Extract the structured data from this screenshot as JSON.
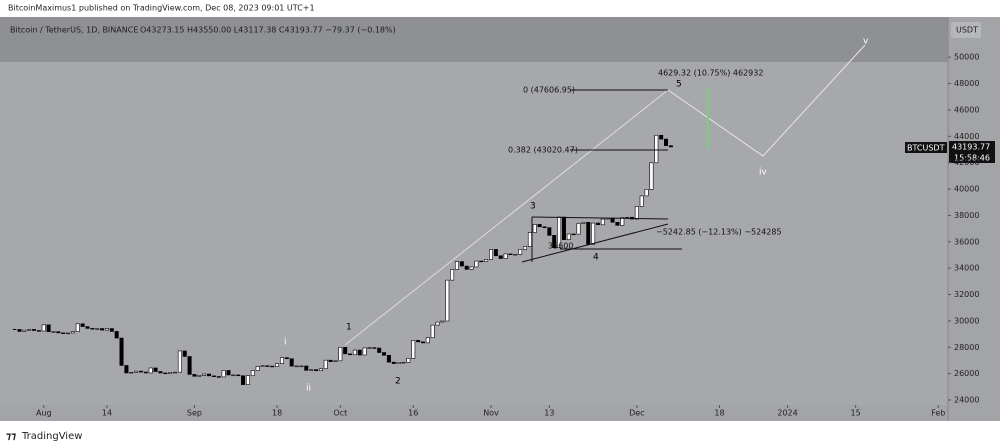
{
  "header": {
    "byline": "BitcoinMaximus1 published on TradingView.com, Dec 08, 2023 09:01 UTC+1",
    "symbol": "Bitcoin / TetherUS, 1D, BINANCE",
    "ohlc": "O43273.15 H43550.00 L43117.38 C43193.77 −79.37 (−0.18%)",
    "currency": "USDT"
  },
  "footer": {
    "brand": "TradingView"
  },
  "price_tag": {
    "symbol": "BTCUSDT",
    "price": "43193.77",
    "countdown": "15:58:46"
  },
  "annotations": {
    "wave_i": "i",
    "wave_ii": "ii",
    "wave_1": "1",
    "wave_2": "2",
    "wave_3": "3",
    "wave_4": "4",
    "wave_5": "5",
    "wave_iv": "iv",
    "wave_v": "v",
    "fib_0": "0 (47606.95)",
    "fib_0382": "0.382 (43020.47)",
    "measure_up": "4629.32 (10.75%) 462932",
    "measure_down": "−5242.85 (−12.13%) −524285",
    "measure_low": "35600"
  },
  "chart_data": {
    "type": "candlestick",
    "up_color": "#ffffff",
    "down_color": "#000000",
    "x": [
      "2023-07-26",
      "2023-07-27",
      "2023-07-28",
      "2023-07-29",
      "2023-07-30",
      "2023-07-31",
      "2023-08-01",
      "2023-08-02",
      "2023-08-03",
      "2023-08-04",
      "2023-08-05",
      "2023-08-06",
      "2023-08-07",
      "2023-08-08",
      "2023-08-09",
      "2023-08-10",
      "2023-08-11",
      "2023-08-12",
      "2023-08-13",
      "2023-08-14",
      "2023-08-15",
      "2023-08-16",
      "2023-08-17",
      "2023-08-18",
      "2023-08-19",
      "2023-08-20",
      "2023-08-21",
      "2023-08-22",
      "2023-08-23",
      "2023-08-24",
      "2023-08-25",
      "2023-08-26",
      "2023-08-27",
      "2023-08-28",
      "2023-08-29",
      "2023-08-30",
      "2023-08-31",
      "2023-09-01",
      "2023-09-02",
      "2023-09-03",
      "2023-09-04",
      "2023-09-05",
      "2023-09-06",
      "2023-09-07",
      "2023-09-08",
      "2023-09-09",
      "2023-09-10",
      "2023-09-11",
      "2023-09-12",
      "2023-09-13",
      "2023-09-14",
      "2023-09-15",
      "2023-09-16",
      "2023-09-17",
      "2023-09-18",
      "2023-09-19",
      "2023-09-20",
      "2023-09-21",
      "2023-09-22",
      "2023-09-23",
      "2023-09-24",
      "2023-09-25",
      "2023-09-26",
      "2023-09-27",
      "2023-09-28",
      "2023-09-29",
      "2023-09-30",
      "2023-10-01",
      "2023-10-02",
      "2023-10-03",
      "2023-10-04",
      "2023-10-05",
      "2023-10-06",
      "2023-10-07",
      "2023-10-08",
      "2023-10-09",
      "2023-10-10",
      "2023-10-11",
      "2023-10-12",
      "2023-10-13",
      "2023-10-14",
      "2023-10-15",
      "2023-10-16",
      "2023-10-17",
      "2023-10-18",
      "2023-10-19",
      "2023-10-20",
      "2023-10-21",
      "2023-10-22",
      "2023-10-23",
      "2023-10-24",
      "2023-10-25",
      "2023-10-26",
      "2023-10-27",
      "2023-10-28",
      "2023-10-29",
      "2023-10-30",
      "2023-10-31",
      "2023-11-01",
      "2023-11-02",
      "2023-11-03",
      "2023-11-04",
      "2023-11-05",
      "2023-11-06",
      "2023-11-07",
      "2023-11-08",
      "2023-11-09",
      "2023-11-10",
      "2023-11-11",
      "2023-11-12",
      "2023-11-13",
      "2023-11-14",
      "2023-11-15",
      "2023-11-16",
      "2023-11-17",
      "2023-11-18",
      "2023-11-19",
      "2023-11-20",
      "2023-11-21",
      "2023-11-22",
      "2023-11-23",
      "2023-11-24",
      "2023-11-25",
      "2023-11-26",
      "2023-11-27",
      "2023-11-28",
      "2023-11-29",
      "2023-11-30",
      "2023-12-01",
      "2023-12-02",
      "2023-12-03",
      "2023-12-04",
      "2023-12-05",
      "2023-12-06",
      "2023-12-07",
      "2023-12-08"
    ],
    "values": [
      29350,
      29200,
      29300,
      29350,
      29270,
      29230,
      29700,
      29180,
      29180,
      29090,
      29060,
      29080,
      29180,
      29780,
      29570,
      29430,
      29400,
      29420,
      29300,
      29420,
      29200,
      28700,
      26620,
      26050,
      26100,
      26190,
      26120,
      26050,
      26430,
      26160,
      26050,
      26010,
      26090,
      26110,
      27720,
      27300,
      25940,
      25800,
      25870,
      25970,
      25830,
      25780,
      25750,
      26240,
      25900,
      25900,
      25840,
      25160,
      25840,
      26230,
      26530,
      26600,
      26570,
      26530,
      26760,
      27210,
      27130,
      26570,
      26580,
      26580,
      26250,
      26300,
      26220,
      26370,
      27020,
      26910,
      26970,
      27990,
      27500,
      27430,
      27790,
      27410,
      27950,
      27970,
      27940,
      27600,
      27390,
      26870,
      26760,
      26860,
      26860,
      27160,
      28520,
      28410,
      28330,
      28720,
      29680,
      29910,
      29990,
      33090,
      33900,
      34500,
      34160,
      33910,
      34090,
      34540,
      34500,
      34660,
      35420,
      34940,
      34730,
      35080,
      35050,
      35050,
      35420,
      35650,
      36700,
      37320,
      37140,
      37070,
      36490,
      35550,
      37880,
      36160,
      36590,
      36580,
      37390,
      37480,
      35810,
      37420,
      37290,
      37720,
      37800,
      37480,
      37250,
      37830,
      37860,
      37720,
      38690,
      39480,
      39980,
      41990,
      44080,
      43790,
      43290,
      43193.77
    ],
    "xlim": [
      "2023-07-23",
      "2024-02-03"
    ],
    "xticks": [
      {
        "value": "2023-08-01",
        "label": "Aug"
      },
      {
        "value": "2023-08-14",
        "label": "14"
      },
      {
        "value": "2023-09-01",
        "label": "Sep"
      },
      {
        "value": "2023-09-18",
        "label": "18"
      },
      {
        "value": "2023-10-01",
        "label": "Oct"
      },
      {
        "value": "2023-10-16",
        "label": "16"
      },
      {
        "value": "2023-11-01",
        "label": "Nov"
      },
      {
        "value": "2023-11-13",
        "label": "13"
      },
      {
        "value": "2023-12-01",
        "label": "Dec"
      },
      {
        "value": "2023-12-18",
        "label": "18"
      },
      {
        "value": "2024-01-01",
        "label": "2024"
      },
      {
        "value": "2024-01-15",
        "label": "15"
      },
      {
        "value": "2024-02-01",
        "label": "Feb"
      }
    ],
    "ylim": [
      23620,
      53050
    ],
    "yticks": [
      24000,
      26000,
      28000,
      30000,
      32000,
      34000,
      36000,
      38000,
      40000,
      42000,
      44000,
      46000,
      48000,
      50000
    ]
  }
}
